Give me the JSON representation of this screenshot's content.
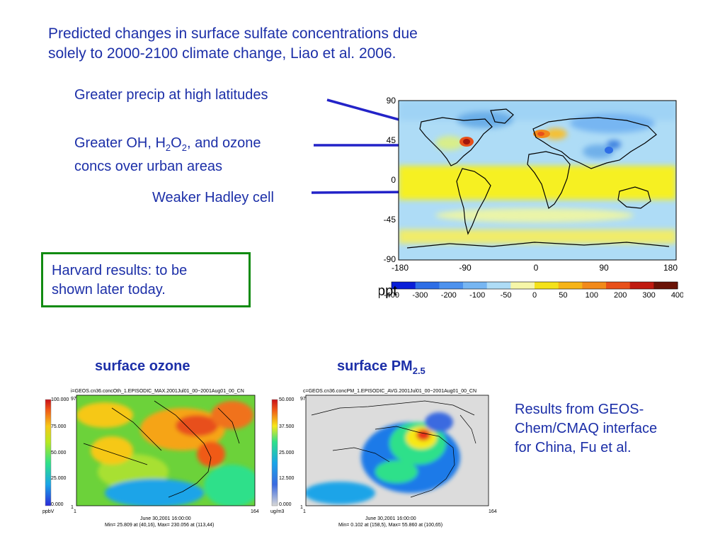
{
  "title": {
    "line1": "Predicted changes in surface sulfate concentrations due",
    "line2": "solely to 2000-2100 climate change, Liao et al. 2006."
  },
  "annotations": {
    "precip": "Greater precip at high latitudes",
    "oh_line1_a": "Greater OH, H",
    "oh_sub1": "2",
    "oh_line1_b": "O",
    "oh_sub2": "2",
    "oh_line1_c": ", and ozone",
    "oh_line2": "concs over urban areas",
    "hadley": "Weaker Hadley cell"
  },
  "harvard_box": {
    "line1": "Harvard results: to be",
    "line2": "shown later today."
  },
  "world_map": {
    "lat_ticks": [
      "90",
      "45",
      "0",
      "-45",
      "-90"
    ],
    "lon_ticks": [
      "-180",
      "-90",
      "0",
      "90",
      "180"
    ],
    "unit": "ppt",
    "colorbar_labels": [
      "-400",
      "-300",
      "-200",
      "-100",
      "-50",
      "0",
      "50",
      "100",
      "200",
      "300",
      "400"
    ],
    "colorbar_colors": [
      "#0a1fd8",
      "#2e6ee6",
      "#4d92ee",
      "#77b6f2",
      "#aedcf6",
      "#f6f6a8",
      "#f4e21a",
      "#f6b418",
      "#f28a1a",
      "#e8501a",
      "#c01a10",
      "#6a1206"
    ]
  },
  "ozone_panel": {
    "heading": "surface ozone",
    "header": "i=GEOS.cn36.concOth_1.EPISODIC_MAX.2001Jul01_00~2001Aug01_00_CN",
    "corner": "97",
    "cb_labels": [
      "100.000",
      "75.000",
      "50.000",
      "25.000",
      "0.000"
    ],
    "unit": "ppbV",
    "axis_left": "1",
    "axis_right": "164",
    "axis_y_min": "1",
    "date": "June 30,2001 16:00:00",
    "minmax": "Min= 25.809 at (40,16), Max= 230.056 at (113,44)"
  },
  "pm_panel": {
    "heading": "surface PM",
    "heading_sub": "2.5",
    "header": "c=GEOS.cn36.concPM_1.EPISODIC_AVG.2001Jul01_00~2001Aug01_00_CN",
    "corner": "97",
    "cb_labels": [
      "50.000",
      "37.500",
      "25.000",
      "12.500",
      "0.000"
    ],
    "unit": "ug/m3",
    "axis_left": "1",
    "axis_right": "164",
    "axis_y_min": "1",
    "date": "June 30,2001 16:00:00",
    "minmax": "Min= 0.102 at (158,5), Max= 55.860 at (100,65)"
  },
  "results_text": {
    "line1": "Results from GEOS-",
    "line2": "Chem/CMAQ interface",
    "line3": "for China, Fu et al."
  },
  "colors": {
    "text_blue": "#1c2fa8",
    "arrow_blue": "#2323c8",
    "box_green": "#118b11"
  }
}
